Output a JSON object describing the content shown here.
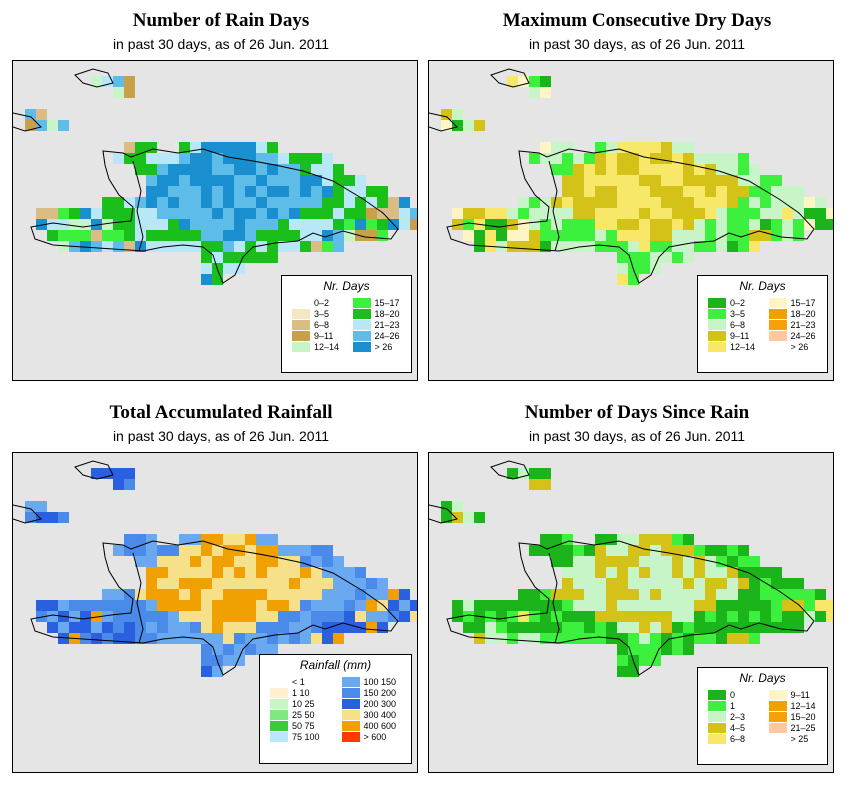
{
  "colors": {
    "ocean": "#e5e5e5",
    "outline": "#000000"
  },
  "panels": [
    {
      "id": "rain-days",
      "title": "Number of Rain Days",
      "subtitle": "in past 30 days, as of  26 Jun. 2011",
      "legend": {
        "title": "Nr. Days",
        "items": [
          {
            "label": "0–2",
            "color": "#ffffff"
          },
          {
            "label": "3–5",
            "color": "#f5e6c4"
          },
          {
            "label": "6–8",
            "color": "#d9bd85"
          },
          {
            "label": "9–11",
            "color": "#c9a04a"
          },
          {
            "label": "12–14",
            "color": "#c8f5c8"
          },
          {
            "label": "15–17",
            "color": "#3ef03e"
          },
          {
            "label": "18–20",
            "color": "#1bbf1b"
          },
          {
            "label": "21–23",
            "color": "#b8e8f8"
          },
          {
            "label": "24–26",
            "color": "#5ebde8"
          },
          {
            "label": "> 26",
            "color": "#1a8fcf"
          }
        ]
      }
    },
    {
      "id": "max-dry-days",
      "title": "Maximum Consecutive Dry Days",
      "subtitle": "in past 30 days, as of  26 Jun. 2011",
      "legend": {
        "title": "Nr. Days",
        "items": [
          {
            "label": "0–2",
            "color": "#1bb51b"
          },
          {
            "label": "3–5",
            "color": "#3ef03e"
          },
          {
            "label": "6–8",
            "color": "#c8f5c8"
          },
          {
            "label": "9–11",
            "color": "#d4c219"
          },
          {
            "label": "12–14",
            "color": "#f7e86a"
          },
          {
            "label": "15–17",
            "color": "#fff5c4"
          },
          {
            "label": "18–20",
            "color": "#f0a000"
          },
          {
            "label": "21–23",
            "color": "#f5a20a"
          },
          {
            "label": "24–26",
            "color": "#ffc7a0"
          },
          {
            "label": "> 26",
            "color": "#ffffff"
          }
        ]
      }
    },
    {
      "id": "total-rainfall",
      "title": "Total Accumulated Rainfall",
      "subtitle": "in past 30 days, as of  26 Jun. 2011",
      "legend": {
        "title": "Rainfall (mm)",
        "items": [
          {
            "label": "< 1",
            "color": "#ffffff"
          },
          {
            "label": "1    10",
            "color": "#fff0d2"
          },
          {
            "label": "10    25",
            "color": "#c8f5c8"
          },
          {
            "label": "25    50",
            "color": "#80e880"
          },
          {
            "label": "50    75",
            "color": "#3ec83e"
          },
          {
            "label": "75  100",
            "color": "#b8e8f8"
          },
          {
            "label": "100  150",
            "color": "#6aa9f0"
          },
          {
            "label": "150  200",
            "color": "#4a8ae8"
          },
          {
            "label": "200  300",
            "color": "#2a60e0"
          },
          {
            "label": "300  400",
            "color": "#f7e08a"
          },
          {
            "label": "400  600",
            "color": "#f0a000"
          },
          {
            "label": "> 600",
            "color": "#ff3a00"
          }
        ]
      }
    },
    {
      "id": "days-since-rain",
      "title": "Number of Days Since Rain",
      "subtitle": "in past 30 days, as of  26 Jun. 2011",
      "legend": {
        "title": "Nr. Days",
        "items": [
          {
            "label": "0",
            "color": "#1bb51b"
          },
          {
            "label": "1",
            "color": "#3ef03e"
          },
          {
            "label": "2–3",
            "color": "#c8f5c8"
          },
          {
            "label": "4–5",
            "color": "#d4c219"
          },
          {
            "label": "6–8",
            "color": "#f7e86a"
          },
          {
            "label": "9–11",
            "color": "#fff5c4"
          },
          {
            "label": "12–14",
            "color": "#f0a000"
          },
          {
            "label": "15–20",
            "color": "#f5a20a"
          },
          {
            "label": "21–25",
            "color": "#ffc7a0"
          },
          {
            "label": "> 25",
            "color": "#ffffff"
          }
        ]
      }
    }
  ]
}
